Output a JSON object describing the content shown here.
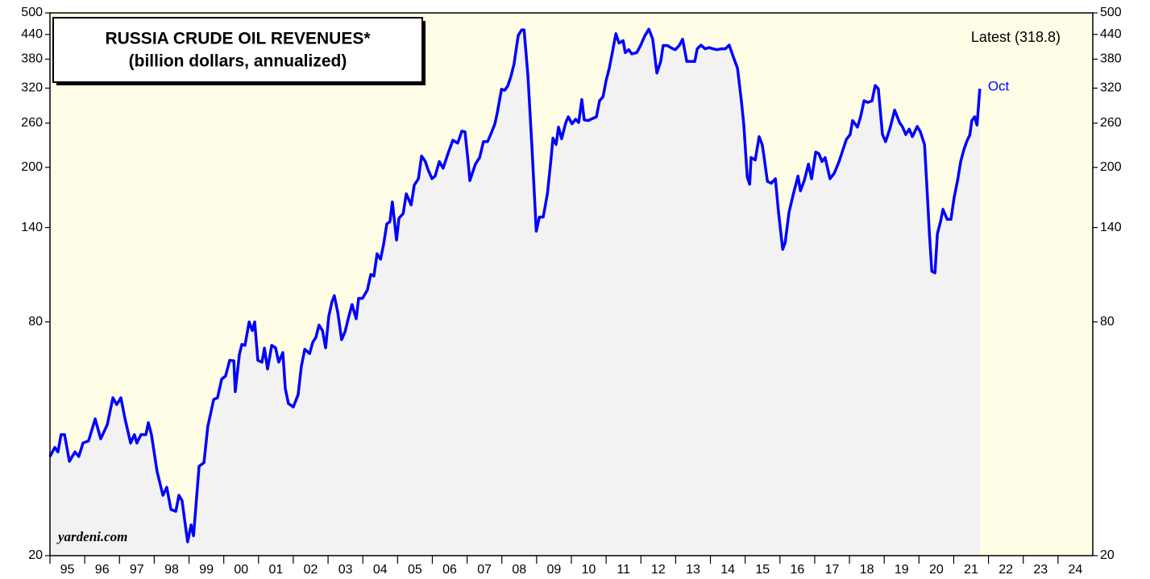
{
  "chart_data": {
    "type": "line",
    "title": "RUSSIA CRUDE OIL REVENUES*",
    "subtitle": "(billion dollars, annualized)",
    "annotation": "Latest (318.8)",
    "last_label": "Oct",
    "source": "yardeni.com",
    "log_scale": true,
    "ylim": [
      20,
      500
    ],
    "yticks": [
      20,
      80,
      140,
      200,
      260,
      320,
      380,
      440,
      500
    ],
    "xlim": [
      1995,
      2025
    ],
    "xticks": [
      {
        "value": 1995,
        "label": "95"
      },
      {
        "value": 1996,
        "label": "96"
      },
      {
        "value": 1997,
        "label": "97"
      },
      {
        "value": 1998,
        "label": "98"
      },
      {
        "value": 1999,
        "label": "99"
      },
      {
        "value": 2000,
        "label": "00"
      },
      {
        "value": 2001,
        "label": "01"
      },
      {
        "value": 2002,
        "label": "02"
      },
      {
        "value": 2003,
        "label": "03"
      },
      {
        "value": 2004,
        "label": "04"
      },
      {
        "value": 2005,
        "label": "05"
      },
      {
        "value": 2006,
        "label": "06"
      },
      {
        "value": 2007,
        "label": "07"
      },
      {
        "value": 2008,
        "label": "08"
      },
      {
        "value": 2009,
        "label": "09"
      },
      {
        "value": 2010,
        "label": "10"
      },
      {
        "value": 2011,
        "label": "11"
      },
      {
        "value": 2012,
        "label": "12"
      },
      {
        "value": 2013,
        "label": "13"
      },
      {
        "value": 2014,
        "label": "14"
      },
      {
        "value": 2015,
        "label": "15"
      },
      {
        "value": 2016,
        "label": "16"
      },
      {
        "value": 2017,
        "label": "17"
      },
      {
        "value": 2018,
        "label": "18"
      },
      {
        "value": 2019,
        "label": "19"
      },
      {
        "value": 2020,
        "label": "20"
      },
      {
        "value": 2021,
        "label": "21"
      },
      {
        "value": 2022,
        "label": "22"
      },
      {
        "value": 2023,
        "label": "23"
      },
      {
        "value": 2024,
        "label": "24"
      }
    ],
    "series": [
      {
        "name": "Russia crude oil revenues",
        "color": "#0000ff",
        "x": [
          1995.0,
          1995.14,
          1995.23,
          1995.32,
          1995.42,
          1995.56,
          1995.72,
          1995.83,
          1995.95,
          1996.11,
          1996.3,
          1996.46,
          1996.65,
          1996.81,
          1996.92,
          1997.04,
          1997.16,
          1997.32,
          1997.43,
          1997.5,
          1997.62,
          1997.76,
          1997.83,
          1997.92,
          1998.08,
          1998.25,
          1998.36,
          1998.48,
          1998.62,
          1998.71,
          1998.8,
          1998.96,
          1999.06,
          1999.13,
          1999.29,
          1999.43,
          1999.54,
          1999.71,
          1999.82,
          1999.94,
          2000.05,
          2000.17,
          2000.29,
          2000.33,
          2000.45,
          2000.52,
          2000.61,
          2000.73,
          2000.82,
          2000.89,
          2000.98,
          2001.1,
          2001.17,
          2001.26,
          2001.38,
          2001.49,
          2001.58,
          2001.7,
          2001.77,
          2001.86,
          2002.0,
          2002.14,
          2002.23,
          2002.33,
          2002.47,
          2002.56,
          2002.65,
          2002.74,
          2002.84,
          2002.93,
          2003.02,
          2003.11,
          2003.18,
          2003.28,
          2003.39,
          2003.49,
          2003.58,
          2003.69,
          2003.81,
          2003.88,
          2003.99,
          2004.13,
          2004.23,
          2004.32,
          2004.41,
          2004.51,
          2004.6,
          2004.69,
          2004.78,
          2004.85,
          2004.97,
          2005.04,
          2005.16,
          2005.25,
          2005.39,
          2005.48,
          2005.6,
          2005.69,
          2005.8,
          2005.87,
          2005.99,
          2006.08,
          2006.2,
          2006.31,
          2006.45,
          2006.59,
          2006.73,
          2006.85,
          2006.94,
          2007.03,
          2007.08,
          2007.24,
          2007.36,
          2007.47,
          2007.59,
          2007.71,
          2007.8,
          2007.87,
          2007.99,
          2008.08,
          2008.17,
          2008.26,
          2008.35,
          2008.47,
          2008.57,
          2008.64,
          2008.75,
          2008.87,
          2008.99,
          2009.08,
          2009.19,
          2009.31,
          2009.4,
          2009.47,
          2009.56,
          2009.63,
          2009.72,
          2009.84,
          2009.91,
          2010.02,
          2010.12,
          2010.21,
          2010.3,
          2010.37,
          2010.49,
          2010.6,
          2010.72,
          2010.81,
          2010.91,
          2011.0,
          2011.09,
          2011.18,
          2011.28,
          2011.37,
          2011.49,
          2011.55,
          2011.65,
          2011.74,
          2011.88,
          2011.99,
          2012.11,
          2012.23,
          2012.34,
          2012.46,
          2012.57,
          2012.64,
          2012.76,
          2012.9,
          2012.99,
          2013.11,
          2013.2,
          2013.32,
          2013.46,
          2013.55,
          2013.62,
          2013.73,
          2013.85,
          2013.96,
          2014.08,
          2014.19,
          2014.31,
          2014.43,
          2014.54,
          2014.66,
          2014.78,
          2014.89,
          2014.96,
          2015.06,
          2015.13,
          2015.17,
          2015.29,
          2015.4,
          2015.49,
          2015.54,
          2015.64,
          2015.75,
          2015.87,
          2015.96,
          2016.08,
          2016.15,
          2016.26,
          2016.38,
          2016.52,
          2016.59,
          2016.7,
          2016.82,
          2016.91,
          2017.03,
          2017.12,
          2017.21,
          2017.3,
          2017.44,
          2017.56,
          2017.7,
          2017.79,
          2017.91,
          2018.02,
          2018.09,
          2018.23,
          2018.32,
          2018.42,
          2018.53,
          2018.65,
          2018.74,
          2018.83,
          2018.95,
          2019.04,
          2019.16,
          2019.3,
          2019.44,
          2019.53,
          2019.62,
          2019.72,
          2019.81,
          2019.95,
          2020.04,
          2020.16,
          2020.23,
          2020.3,
          2020.37,
          2020.46,
          2020.53,
          2020.62,
          2020.69,
          2020.81,
          2020.92,
          2021.01,
          2021.11,
          2021.2,
          2021.29,
          2021.38,
          2021.46,
          2021.52,
          2021.6,
          2021.67,
          2021.75
        ],
        "values": [
          36,
          38,
          37,
          41,
          41,
          35,
          37,
          36,
          39,
          39.5,
          45,
          40,
          43.5,
          51,
          49,
          51,
          45,
          39,
          41,
          39,
          41,
          41,
          44,
          41,
          33,
          28.6,
          30,
          26.3,
          26,
          28.6,
          27.7,
          21.7,
          24,
          22.5,
          34,
          34.7,
          43,
          50.5,
          51,
          57,
          58,
          63.7,
          63.5,
          52.9,
          66,
          70,
          69.6,
          80,
          76,
          80,
          63.7,
          63,
          68.5,
          60.5,
          69.6,
          68.6,
          63,
          66.7,
          53.9,
          49.3,
          48.3,
          52,
          61.3,
          68,
          66.3,
          70.9,
          73,
          78.5,
          76,
          68.6,
          82.6,
          90,
          93.5,
          84.6,
          72,
          75.5,
          81.5,
          88.7,
          81.5,
          92,
          92,
          96.6,
          106,
          105,
          119.8,
          116,
          127,
          143,
          145,
          163,
          130,
          148,
          152,
          171,
          160,
          180,
          187,
          214,
          207,
          198,
          187,
          190,
          207,
          199,
          217,
          235,
          231,
          248,
          247,
          207,
          185,
          204,
          212,
          233,
          233,
          247,
          259,
          277,
          318,
          316,
          324,
          343,
          369,
          437,
          452,
          452,
          345,
          222,
          137,
          149,
          149,
          171,
          204,
          238,
          229,
          254,
          237,
          261,
          270,
          259,
          266,
          261,
          299,
          265,
          264,
          267,
          270,
          297,
          304,
          335,
          360,
          396,
          442,
          418,
          424,
          395,
          402,
          392,
          395,
          412,
          436,
          454,
          428,
          350,
          375,
          412,
          412,
          405,
          402,
          413,
          428,
          375,
          375,
          375,
          404,
          413,
          404,
          407,
          404,
          402,
          404,
          404,
          413,
          385,
          360,
          297,
          258,
          189,
          181,
          212,
          209,
          240,
          229,
          214,
          184,
          182,
          187,
          153,
          123,
          128,
          153,
          170,
          190,
          174,
          185,
          204,
          187,
          219,
          217,
          207,
          212,
          187,
          193,
          207,
          219,
          236,
          243,
          264,
          254,
          270,
          297,
          294,
          297,
          325,
          319,
          243,
          233,
          251,
          281,
          261,
          254,
          243,
          251,
          240,
          255,
          247,
          229,
          177,
          135,
          108,
          107,
          135,
          145,
          156,
          147,
          147,
          167,
          185,
          207,
          222,
          234,
          242,
          264,
          270,
          257,
          318.8
        ]
      }
    ]
  }
}
